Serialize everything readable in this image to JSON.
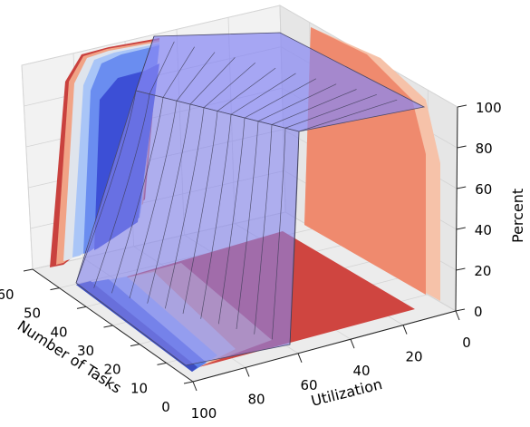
{
  "chart_data": {
    "type": "surface3d",
    "xlabel": "Utilization",
    "ylabel": "Number of Tasks",
    "zlabel": "Percent",
    "xlim": [
      0,
      100
    ],
    "ylim": [
      0,
      60
    ],
    "zlim": [
      0,
      100
    ],
    "x_ticks": [
      "0",
      "20",
      "40",
      "60",
      "80",
      "100"
    ],
    "y_ticks": [
      "0",
      "10",
      "20",
      "30",
      "40",
      "50",
      "60"
    ],
    "z_ticks": [
      "0",
      "20",
      "40",
      "60",
      "80",
      "100"
    ],
    "grid": true,
    "colormap": "coolwarm",
    "surface_color": "#7f7ff5",
    "transition_utilization": [
      25,
      30,
      35,
      40,
      45,
      50,
      55,
      60,
      65,
      70,
      75,
      80,
      85
    ],
    "num_tasks_grid": [
      0,
      5,
      10,
      15,
      20,
      25,
      30,
      35,
      40,
      45,
      50,
      55,
      60
    ],
    "plateau_percent": 100,
    "floor_percent": 0
  }
}
